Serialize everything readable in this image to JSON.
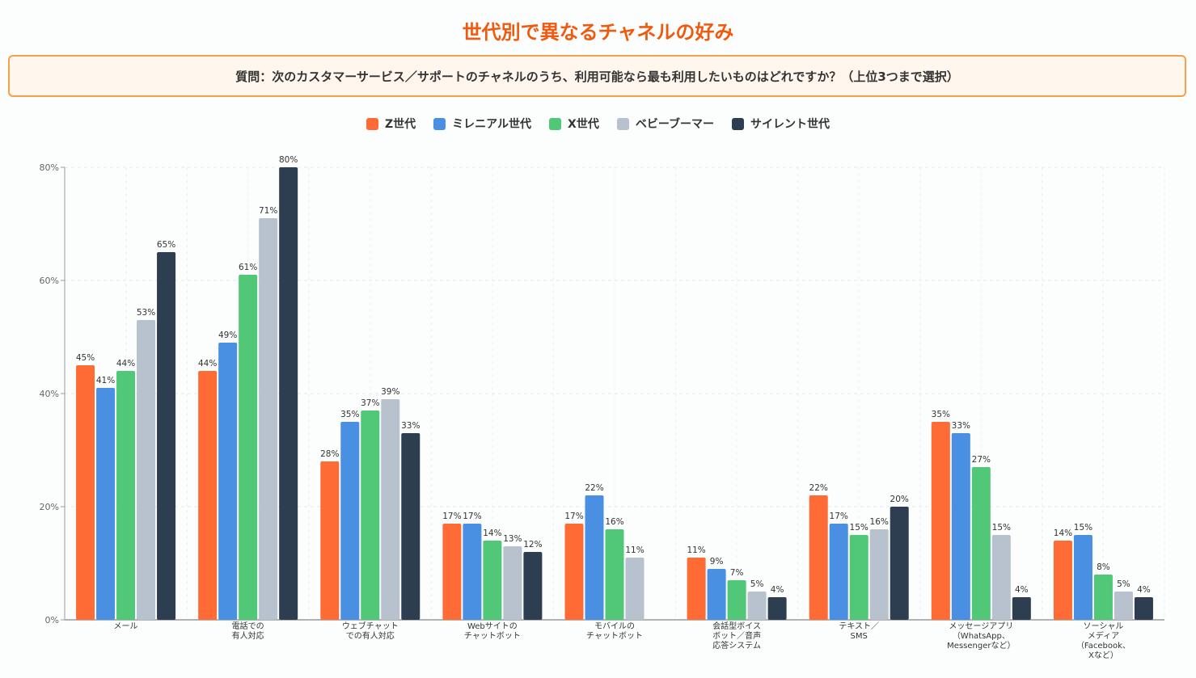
{
  "title": "世代別で異なるチャネルの好み",
  "question": "質問：次のカスタマーサービス／サポートのチャネルのうち、利用可能なら最も利用したいものはどれですか？（上位3つまで選択）",
  "colors": {
    "Z世代": "#ff6b35",
    "ミレニアル世代": "#4a90e2",
    "X世代": "#50c878",
    "ベビーブーマー": "#b8c2ce",
    "サイレント世代": "#2c3e50"
  },
  "chart_data": {
    "type": "bar",
    "title": "世代別で異なるチャネルの好み",
    "categories": [
      [
        "メール"
      ],
      [
        "電話での",
        "有人対応"
      ],
      [
        "ウェブチャット",
        "での有人対応"
      ],
      [
        "Webサイトの",
        "チャットボット"
      ],
      [
        "モバイルの",
        "チャットボット"
      ],
      [
        "会話型ボイス",
        "ボット／音声",
        "応答システム"
      ],
      [
        "テキスト／",
        "SMS"
      ],
      [
        "メッセージアプリ",
        "（WhatsApp、",
        "Messengerなど）"
      ],
      [
        "ソーシャル",
        "メディア",
        "（Facebook、",
        "Xなど）"
      ]
    ],
    "series": [
      {
        "name": "Z世代",
        "values": [
          45,
          44,
          28,
          17,
          17,
          11,
          22,
          35,
          14
        ]
      },
      {
        "name": "ミレニアル世代",
        "values": [
          41,
          49,
          35,
          17,
          22,
          9,
          17,
          33,
          15
        ]
      },
      {
        "name": "X世代",
        "values": [
          44,
          61,
          37,
          14,
          16,
          7,
          15,
          27,
          8
        ]
      },
      {
        "name": "ベビーブーマー",
        "values": [
          53,
          71,
          39,
          13,
          11,
          5,
          16,
          15,
          5
        ]
      },
      {
        "name": "サイレント世代",
        "values": [
          65,
          80,
          33,
          12,
          null,
          4,
          20,
          4,
          4
        ]
      }
    ],
    "yticks": [
      "0%",
      "20%",
      "40%",
      "60%",
      "80%"
    ],
    "ylim": [
      0,
      80
    ],
    "unit": "%",
    "grid": true,
    "legend_position": "top-center"
  }
}
